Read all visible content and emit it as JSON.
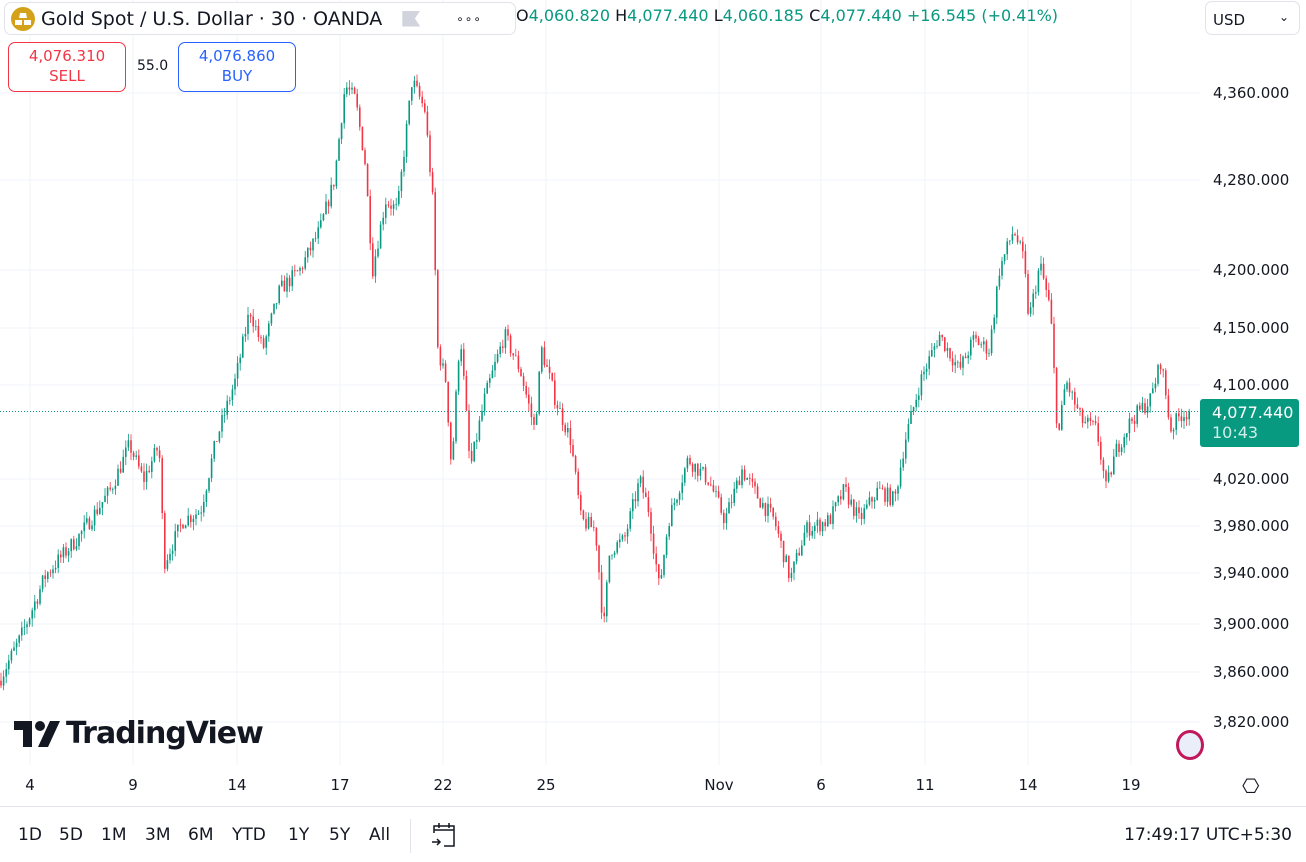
{
  "header": {
    "symbol_title": "Gold Spot / U.S. Dollar · 30 · OANDA",
    "more_label": "∘∘∘",
    "ohlc": {
      "o_label": "O",
      "o": "4,060.820",
      "h_label": "H",
      "h": "4,077.440",
      "l_label": "L",
      "l": "4,060.185",
      "c_label": "C",
      "c": "4,077.440",
      "change": "+16.545 (+0.41%)"
    }
  },
  "trade": {
    "sell_price": "4,076.310",
    "sell_label": "SELL",
    "spread": "55.0",
    "buy_price": "4,076.860",
    "buy_label": "BUY"
  },
  "currency": {
    "label": "USD"
  },
  "last_price": {
    "price": "4,077.440",
    "countdown": "10:43"
  },
  "brand": {
    "logo_text": "TradingView"
  },
  "bottom": {
    "ranges": [
      "1D",
      "5D",
      "1M",
      "3M",
      "6M",
      "YTD",
      "1Y",
      "5Y",
      "All"
    ],
    "clock": "17:49:17 UTC+5:30"
  },
  "colors": {
    "up": "#089981",
    "down": "#f23645",
    "sell": "#f23645",
    "buy": "#2962ff",
    "grid": "#f0f3fa"
  },
  "chart_data": {
    "type": "candlestick",
    "interval": "30",
    "last_price": 4077.44,
    "y_ticks": [
      4360,
      4280,
      4200,
      4150,
      4100,
      4020,
      3980,
      3940,
      3900,
      3860,
      3820
    ],
    "y_tick_labels": [
      "4,360.000",
      "4,280.000",
      "4,200.000",
      "4,150.000",
      "4,100.000",
      "4,020.000",
      "3,980.000",
      "3,940.000",
      "3,900.000",
      "3,860.000",
      "3,820.000"
    ],
    "x_ticks": [
      {
        "label": "4",
        "date": "Oct 4"
      },
      {
        "label": "9",
        "date": "Oct 9"
      },
      {
        "label": "14",
        "date": "Oct 14"
      },
      {
        "label": "17",
        "date": "Oct 17"
      },
      {
        "label": "22",
        "date": "Oct 22"
      },
      {
        "label": "25",
        "date": "Oct 25"
      },
      {
        "label": "Nov",
        "date": "Nov 1"
      },
      {
        "label": "6",
        "date": "Nov 6"
      },
      {
        "label": "11",
        "date": "Nov 11"
      },
      {
        "label": "14",
        "date": "Nov 14"
      },
      {
        "label": "19",
        "date": "Nov 19"
      }
    ],
    "grid": true,
    "price_path": [
      [
        "Oct 2 12:00",
        3853
      ],
      [
        "Oct 3 12:00",
        3887
      ],
      [
        "Oct 4 18:00",
        3938
      ],
      [
        "Oct 6 10:00",
        3972
      ],
      [
        "Oct 7 22:00",
        4011
      ],
      [
        "Oct 8 20:00",
        4049
      ],
      [
        "Oct 9 12:00",
        4019
      ],
      [
        "Oct 10 06:00",
        4049
      ],
      [
        "Oct 10 12:00",
        3949
      ],
      [
        "Oct 11 10:00",
        3985
      ],
      [
        "Oct 12 06:00",
        3993
      ],
      [
        "Oct 13 00:00",
        4053
      ],
      [
        "Oct 13 22:00",
        4104
      ],
      [
        "Oct 14 09:00",
        4166
      ],
      [
        "Oct 14 18:00",
        4131
      ],
      [
        "Oct 15 06:00",
        4183
      ],
      [
        "Oct 15 20:00",
        4200
      ],
      [
        "Oct 16 10:00",
        4236
      ],
      [
        "Oct 16 20:00",
        4280
      ],
      [
        "Oct 17 06:00",
        4367
      ],
      [
        "Oct 17 18:00",
        4354
      ],
      [
        "Oct 18 05:00",
        4298
      ],
      [
        "Oct 18 14:00",
        4200
      ],
      [
        "Oct 19 05:00",
        4262
      ],
      [
        "Oct 19 19:00",
        4253
      ],
      [
        "Oct 20 12:00",
        4372
      ],
      [
        "Oct 21 03:00",
        4344
      ],
      [
        "Oct 21 12:00",
        4262
      ],
      [
        "Oct 21 18:00",
        4131
      ],
      [
        "Oct 22 02:00",
        4104
      ],
      [
        "Oct 22 06:00",
        4028
      ],
      [
        "Oct 22 12:00",
        4148
      ],
      [
        "Oct 22 19:00",
        4028
      ],
      [
        "Oct 23 05:00",
        4088
      ],
      [
        "Oct 23 19:00",
        4144
      ],
      [
        "Oct 24 06:00",
        4113
      ],
      [
        "Oct 24 16:00",
        4062
      ],
      [
        "Oct 24 21:00",
        4131
      ],
      [
        "Oct 25 09:00",
        4088
      ],
      [
        "Oct 26 00:00",
        4053
      ],
      [
        "Oct 26 10:00",
        3985
      ],
      [
        "Oct 27 00:00",
        3977
      ],
      [
        "Oct 27 08:00",
        3895
      ],
      [
        "Oct 27 14:00",
        3960
      ],
      [
        "Oct 28 04:00",
        3968
      ],
      [
        "Oct 28 19:00",
        4019
      ],
      [
        "Oct 29 04:00",
        3993
      ],
      [
        "Oct 29 14:00",
        3927
      ],
      [
        "Oct 29 23:00",
        3985
      ],
      [
        "Oct 30 18:00",
        4037
      ],
      [
        "Oct 31 14:00",
        4019
      ],
      [
        "Nov 1 07:00",
        3985
      ],
      [
        "Nov 2 03:00",
        4028
      ],
      [
        "Nov 3 00:00",
        4002
      ],
      [
        "Nov 3 17:00",
        3985
      ],
      [
        "Nov 4 12:00",
        3935
      ],
      [
        "Nov 5 06:00",
        3977
      ],
      [
        "Nov 6 10:00",
        3985
      ],
      [
        "Nov 7 03:00",
        4011
      ],
      [
        "Nov 7 20:00",
        3985
      ],
      [
        "Nov 8 18:00",
        4011
      ],
      [
        "Nov 9 13:00",
        4002
      ],
      [
        "Nov 10 01:00",
        4053
      ],
      [
        "Nov 10 19:00",
        4104
      ],
      [
        "Nov 11 10:00",
        4144
      ],
      [
        "Nov 12 00:00",
        4113
      ],
      [
        "Nov 12 10:00",
        4140
      ],
      [
        "Nov 12 21:00",
        4131
      ],
      [
        "Nov 13 04:00",
        4200
      ],
      [
        "Nov 13 14:00",
        4236
      ],
      [
        "Nov 13 21:00",
        4209
      ],
      [
        "Nov 14 01:00",
        4157
      ],
      [
        "Nov 14 14:00",
        4205
      ],
      [
        "Nov 15 02:00",
        4166
      ],
      [
        "Nov 15 11:00",
        4053
      ],
      [
        "Nov 15 20:00",
        4104
      ],
      [
        "Nov 16 14:00",
        4070
      ],
      [
        "Nov 17 08:00",
        4062
      ],
      [
        "Nov 17 19:00",
        4011
      ],
      [
        "Nov 18 07:00",
        4045
      ],
      [
        "Nov 19 00:00",
        4070
      ],
      [
        "Nov 19 23:00",
        4088
      ],
      [
        "Nov 20 11:00",
        4122
      ],
      [
        "Nov 20 22:00",
        4062
      ],
      [
        "Nov 21 10:00",
        4075
      ],
      [
        "Nov 21 22:00",
        4077.44
      ]
    ]
  }
}
